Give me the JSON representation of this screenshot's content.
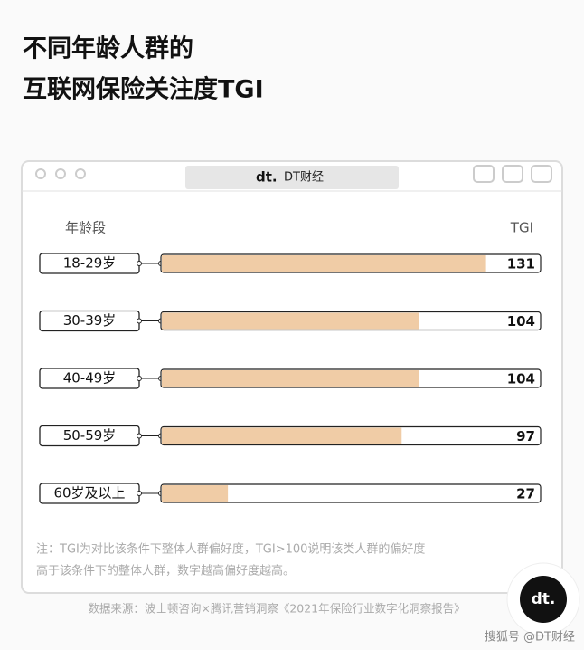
{
  "chart_data": {
    "type": "bar",
    "title_lines": [
      "不同年龄人群的",
      "互联网保险关注度TGI"
    ],
    "window_title": "DT财经",
    "logo": "dt.",
    "category_header": "年龄段",
    "value_header": "TGI",
    "categories": [
      "18-29岁",
      "30-39岁",
      "40-49岁",
      "50-59岁",
      "60岁及以上"
    ],
    "values": [
      131,
      104,
      104,
      97,
      27
    ],
    "color": "#f0cca6",
    "xlim": [
      0,
      153
    ],
    "note_lines": [
      "注：TGI为对比该条件下整体人群偏好度，TGI>100说明该类人群的偏好度",
      "高于该条件下的整体人群，数字越高偏好度越高。"
    ],
    "source": "数据来源：波士顿咨询×腾讯营销洞察《2021年保险行业数字化洞察报告》",
    "credit": "搜狐号 @DT财经"
  }
}
